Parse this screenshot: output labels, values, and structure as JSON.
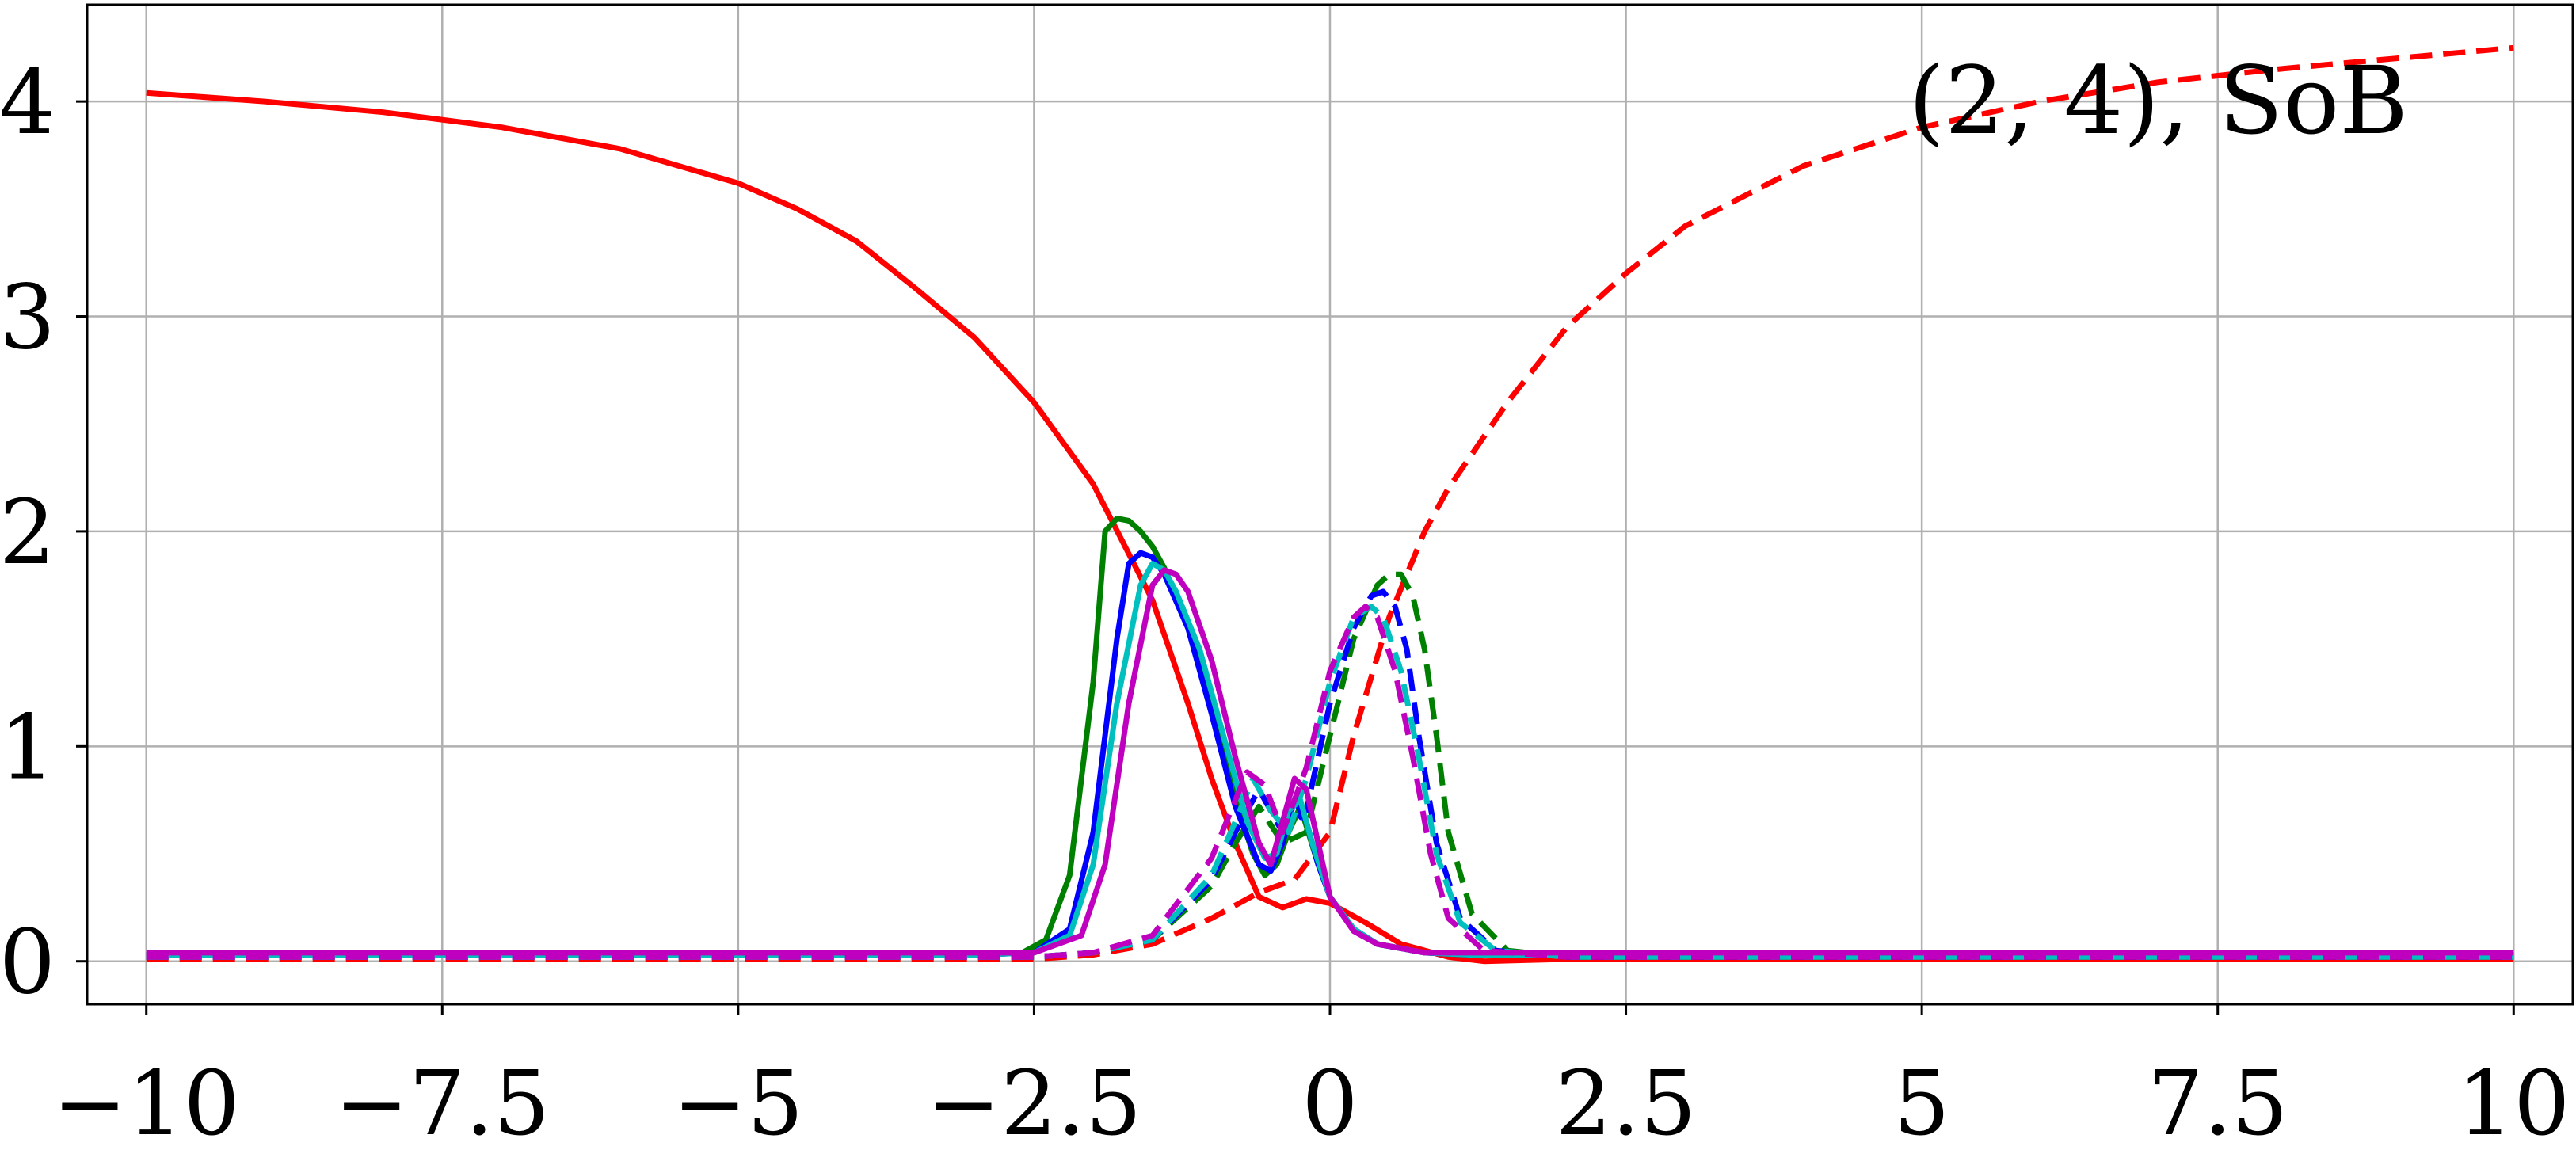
{
  "chart_data": {
    "type": "line",
    "title": "",
    "xlabel": "",
    "ylabel": "",
    "annotation": "(2, 4), SoB",
    "xlim": [
      -10.5,
      10.5
    ],
    "ylim": [
      -0.2,
      4.45
    ],
    "x_ticks": [
      -10,
      -7.5,
      -5,
      -2.5,
      0,
      2.5,
      5,
      7.5,
      10
    ],
    "x_tick_labels": [
      "−10",
      "−7.5",
      "−5",
      "−2.5",
      "0",
      "2.5",
      "5",
      "7.5",
      "10"
    ],
    "y_ticks": [
      0,
      1,
      2,
      3,
      4
    ],
    "y_tick_labels": [
      "0",
      "1",
      "2",
      "3",
      "4"
    ],
    "grid": true,
    "legend": "none",
    "series": [
      {
        "color": "#ff0000",
        "style": "solid",
        "x": [
          -10,
          -9,
          -8,
          -7,
          -6,
          -5,
          -4.5,
          -4,
          -3.5,
          -3,
          -2.5,
          -2,
          -1.5,
          -1.2,
          -1,
          -0.8,
          -0.6,
          -0.4,
          -0.2,
          0,
          0.3,
          0.6,
          1,
          1.3,
          2,
          3,
          5,
          7.5,
          10
        ],
        "y": [
          4.04,
          4.0,
          3.95,
          3.88,
          3.78,
          3.62,
          3.5,
          3.35,
          3.13,
          2.9,
          2.6,
          2.22,
          1.68,
          1.2,
          0.85,
          0.55,
          0.3,
          0.25,
          0.29,
          0.27,
          0.18,
          0.08,
          0.02,
          0.0,
          0.01,
          0.01,
          0.01,
          0.01,
          0.01
        ]
      },
      {
        "color": "#ff0000",
        "style": "dashed",
        "x": [
          -10,
          -5,
          -3,
          -2.5,
          -2,
          -1.5,
          -1,
          -0.6,
          -0.3,
          0,
          0.2,
          0.5,
          0.8,
          1,
          1.5,
          2,
          2.5,
          3,
          4,
          5,
          6,
          7,
          8,
          9,
          10
        ],
        "y": [
          0.01,
          0.01,
          0.01,
          0.01,
          0.03,
          0.08,
          0.2,
          0.32,
          0.38,
          0.6,
          1.05,
          1.6,
          2.0,
          2.2,
          2.6,
          2.95,
          3.2,
          3.42,
          3.7,
          3.88,
          4.0,
          4.09,
          4.15,
          4.2,
          4.25
        ]
      },
      {
        "color": "#008000",
        "style": "solid",
        "x": [
          -10,
          -3,
          -2.6,
          -2.4,
          -2.2,
          -2.0,
          -1.9,
          -1.8,
          -1.7,
          -1.6,
          -1.5,
          -1.4,
          -1.2,
          -1.0,
          -0.8,
          -0.65,
          -0.55,
          -0.45,
          -0.35,
          -0.25,
          -0.1,
          0,
          0.2,
          0.4,
          0.8,
          1.2,
          2,
          5,
          10
        ],
        "y": [
          0.03,
          0.03,
          0.04,
          0.1,
          0.4,
          1.3,
          2.0,
          2.06,
          2.05,
          2.0,
          1.93,
          1.83,
          1.57,
          1.2,
          0.75,
          0.5,
          0.4,
          0.45,
          0.6,
          0.72,
          0.45,
          0.3,
          0.15,
          0.08,
          0.04,
          0.03,
          0.03,
          0.03,
          0.03
        ]
      },
      {
        "color": "#008000",
        "style": "dashed",
        "x": [
          -10,
          -3,
          -2.5,
          -2,
          -1.5,
          -1,
          -0.8,
          -0.6,
          -0.4,
          -0.2,
          0,
          0.2,
          0.4,
          0.5,
          0.6,
          0.7,
          0.8,
          0.9,
          1.0,
          1.2,
          1.5,
          2,
          10
        ],
        "y": [
          0.02,
          0.02,
          0.02,
          0.04,
          0.1,
          0.35,
          0.55,
          0.72,
          0.55,
          0.6,
          1.05,
          1.5,
          1.75,
          1.8,
          1.8,
          1.7,
          1.45,
          1.05,
          0.6,
          0.22,
          0.05,
          0.02,
          0.02
        ]
      },
      {
        "color": "#0000ff",
        "style": "solid",
        "x": [
          -10,
          -3,
          -2.5,
          -2.2,
          -2.0,
          -1.8,
          -1.7,
          -1.6,
          -1.5,
          -1.4,
          -1.2,
          -1.0,
          -0.8,
          -0.6,
          -0.5,
          -0.4,
          -0.3,
          -0.2,
          -0.1,
          0,
          0.2,
          0.4,
          0.8,
          1.2,
          2,
          10
        ],
        "y": [
          0.03,
          0.03,
          0.04,
          0.15,
          0.6,
          1.5,
          1.85,
          1.9,
          1.88,
          1.8,
          1.55,
          1.15,
          0.72,
          0.45,
          0.42,
          0.55,
          0.75,
          0.65,
          0.45,
          0.3,
          0.15,
          0.08,
          0.04,
          0.03,
          0.03,
          0.03
        ]
      },
      {
        "color": "#0000ff",
        "style": "dashed",
        "x": [
          -10,
          -3,
          -2.5,
          -2,
          -1.5,
          -1,
          -0.8,
          -0.6,
          -0.4,
          -0.2,
          0,
          0.2,
          0.35,
          0.45,
          0.55,
          0.65,
          0.75,
          0.9,
          1.1,
          1.4,
          2,
          10
        ],
        "y": [
          0.02,
          0.02,
          0.02,
          0.04,
          0.1,
          0.38,
          0.6,
          0.8,
          0.6,
          0.7,
          1.2,
          1.55,
          1.7,
          1.72,
          1.65,
          1.45,
          1.05,
          0.55,
          0.2,
          0.05,
          0.02,
          0.02
        ]
      },
      {
        "color": "#00bfbf",
        "style": "solid",
        "x": [
          -10,
          -3,
          -2.5,
          -2.2,
          -2.0,
          -1.8,
          -1.6,
          -1.5,
          -1.4,
          -1.3,
          -1.1,
          -0.9,
          -0.7,
          -0.55,
          -0.45,
          -0.35,
          -0.25,
          -0.15,
          0,
          0.2,
          0.4,
          0.8,
          1.2,
          2,
          10
        ],
        "y": [
          0.03,
          0.03,
          0.04,
          0.12,
          0.45,
          1.2,
          1.75,
          1.85,
          1.82,
          1.72,
          1.45,
          1.05,
          0.65,
          0.48,
          0.5,
          0.7,
          0.75,
          0.55,
          0.3,
          0.15,
          0.08,
          0.04,
          0.03,
          0.03,
          0.03
        ]
      },
      {
        "color": "#00bfbf",
        "style": "dashed",
        "x": [
          -10,
          -3,
          -2.5,
          -2,
          -1.5,
          -1,
          -0.8,
          -0.65,
          -0.5,
          -0.35,
          -0.2,
          0,
          0.2,
          0.35,
          0.45,
          0.6,
          0.75,
          0.9,
          1.1,
          1.4,
          2,
          10
        ],
        "y": [
          0.02,
          0.02,
          0.02,
          0.04,
          0.1,
          0.4,
          0.65,
          0.85,
          0.7,
          0.6,
          0.85,
          1.3,
          1.6,
          1.65,
          1.6,
          1.35,
          0.95,
          0.5,
          0.18,
          0.05,
          0.02,
          0.02
        ]
      },
      {
        "color": "#bf00bf",
        "style": "solid",
        "x": [
          -10,
          -3,
          -2.5,
          -2.1,
          -1.9,
          -1.7,
          -1.5,
          -1.4,
          -1.3,
          -1.2,
          -1.0,
          -0.8,
          -0.6,
          -0.5,
          -0.4,
          -0.3,
          -0.2,
          -0.1,
          0,
          0.2,
          0.4,
          0.8,
          1.2,
          2,
          10
        ],
        "y": [
          0.04,
          0.04,
          0.04,
          0.12,
          0.45,
          1.2,
          1.75,
          1.82,
          1.8,
          1.72,
          1.4,
          0.95,
          0.55,
          0.45,
          0.65,
          0.85,
          0.8,
          0.55,
          0.3,
          0.14,
          0.08,
          0.04,
          0.04,
          0.04,
          0.04
        ]
      },
      {
        "color": "#bf00bf",
        "style": "dashed",
        "x": [
          -10,
          -3,
          -2.5,
          -2,
          -1.5,
          -1,
          -0.8,
          -0.7,
          -0.55,
          -0.4,
          -0.2,
          0,
          0.2,
          0.3,
          0.4,
          0.55,
          0.7,
          0.85,
          1.0,
          1.3,
          2,
          10
        ],
        "y": [
          0.02,
          0.02,
          0.02,
          0.04,
          0.12,
          0.48,
          0.75,
          0.88,
          0.82,
          0.6,
          0.9,
          1.35,
          1.6,
          1.65,
          1.6,
          1.35,
          0.95,
          0.5,
          0.2,
          0.05,
          0.02,
          0.02
        ]
      }
    ]
  }
}
